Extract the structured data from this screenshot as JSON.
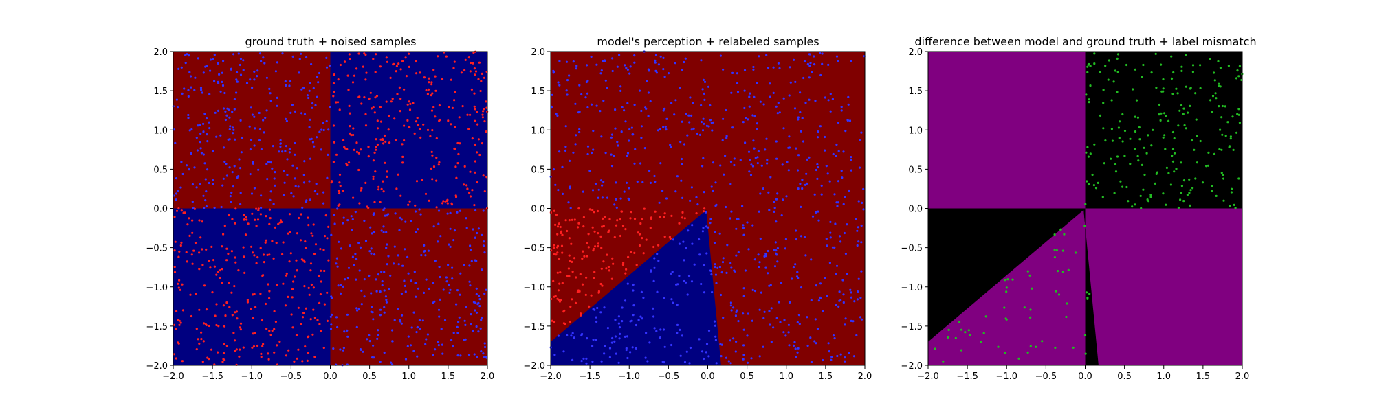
{
  "figure": {
    "colors": {
      "red_region": "#800000",
      "blue_region": "#000080",
      "red_point": "#ff2020",
      "blue_point": "#3333ff",
      "purple_region": "#800080",
      "black_region": "#000000",
      "green_point": "#22bb22"
    }
  },
  "chart_data": [
    {
      "type": "scatter",
      "title": "ground truth + noised samples",
      "xlim": [
        -2.0,
        2.0
      ],
      "ylim": [
        -2.0,
        2.0
      ],
      "xticks": [
        "−2.0",
        "−1.5",
        "−1.0",
        "−0.5",
        "0.0",
        "0.5",
        "1.0",
        "1.5",
        "2.0"
      ],
      "yticks": [
        "−2.0",
        "−1.5",
        "−1.0",
        "−0.5",
        "0.0",
        "0.5",
        "1.0",
        "1.5",
        "2.0"
      ],
      "background_regions": [
        {
          "quadrant": "x<0,y>0",
          "color": "#800000"
        },
        {
          "quadrant": "x>0,y>0",
          "color": "#000080"
        },
        {
          "quadrant": "x<0,y<0",
          "color": "#000080"
        },
        {
          "quadrant": "x>0,y<0",
          "color": "#800000"
        }
      ],
      "series": [
        {
          "color": "#3333ff",
          "region": "x<0,y>0",
          "count": 300
        },
        {
          "color": "#ff2020",
          "region": "x>0,y>0",
          "count": 300
        },
        {
          "color": "#ff2020",
          "region": "x<0,y<0",
          "count": 300
        },
        {
          "color": "#3333ff",
          "region": "x>0,y<0",
          "count": 300
        }
      ]
    },
    {
      "type": "scatter",
      "title": "model's perception + relabeled samples",
      "xlim": [
        -2.0,
        2.0
      ],
      "ylim": [
        -2.0,
        2.0
      ],
      "xticks": [
        "−2.0",
        "−1.5",
        "−1.0",
        "−0.5",
        "0.0",
        "0.5",
        "1.0",
        "1.5",
        "2.0"
      ],
      "yticks": [
        "−2.0",
        "−1.5",
        "−1.0",
        "−0.5",
        "0.0",
        "0.5",
        "1.0",
        "1.5",
        "2.0"
      ],
      "background_regions": [
        {
          "area": "everywhere except wedge",
          "color": "#800000"
        },
        {
          "area": "wedge with vertices (-2.0,-1.7), (-0.02,-0.02), (0.17,-2.0), (-2.0,-2.0)",
          "color": "#000080"
        }
      ],
      "series": [
        {
          "color": "#3333ff",
          "region": "outside wedge, not lower-left",
          "count": 600
        },
        {
          "color": "#ff2020",
          "region": "lower-left quadrant above wedge",
          "count": 170
        },
        {
          "color": "#3333ff",
          "region": "inside wedge",
          "count": 150
        }
      ]
    },
    {
      "type": "scatter",
      "title": "difference between model and ground truth + label mismatch",
      "xlim": [
        -2.0,
        2.0
      ],
      "ylim": [
        -2.0,
        2.0
      ],
      "xticks": [
        "−2.0",
        "−1.5",
        "−1.0",
        "−0.5",
        "0.0",
        "0.5",
        "1.0",
        "1.5",
        "2.0"
      ],
      "yticks": [
        "−2.0",
        "−1.5",
        "−1.0",
        "−0.5",
        "0.0",
        "0.5",
        "1.0",
        "1.5",
        "2.0"
      ],
      "background_regions": [
        {
          "area": "upper-left quadrant",
          "color": "#800080"
        },
        {
          "area": "upper-right quadrant",
          "color": "#000000"
        },
        {
          "area": "lower-left quadrant above wedge",
          "color": "#000000"
        },
        {
          "area": "wedge",
          "color": "#800080"
        },
        {
          "area": "thin sliver between x=0 and x=0.17 below y=0",
          "color": "#000000"
        },
        {
          "area": "lower-right quadrant",
          "color": "#800080"
        }
      ],
      "series": [
        {
          "color": "#22bb22",
          "region": "upper-right quadrant",
          "count": 230
        },
        {
          "color": "#22bb22",
          "region": "inside wedge",
          "count": 60
        }
      ]
    }
  ]
}
